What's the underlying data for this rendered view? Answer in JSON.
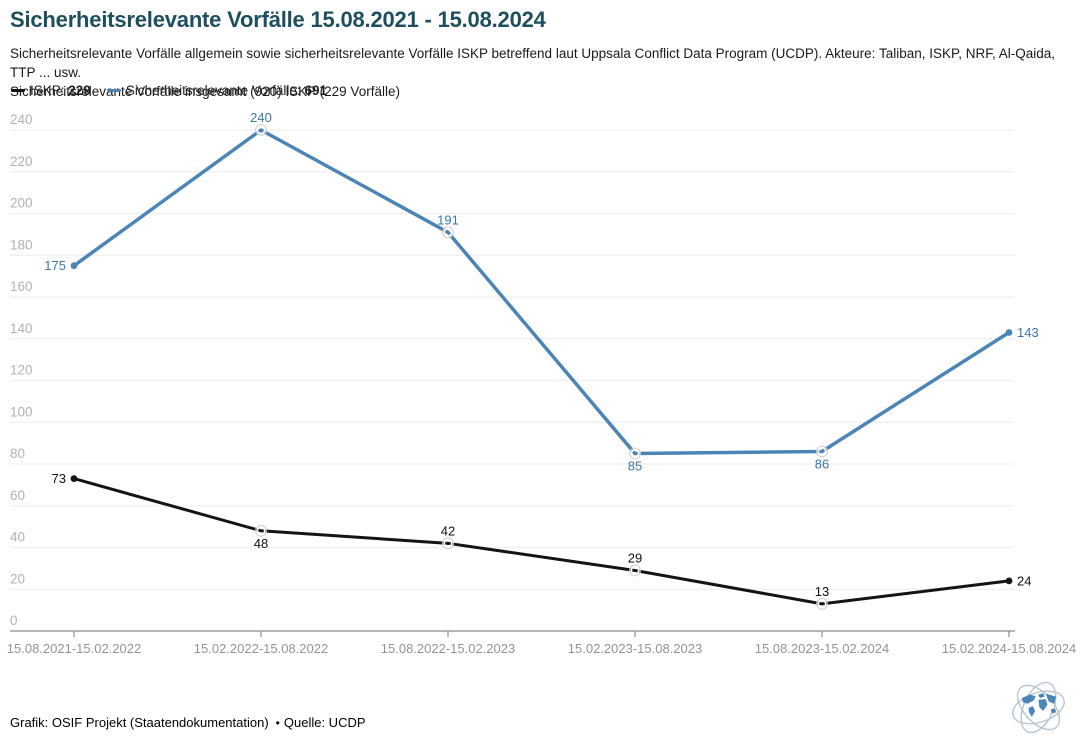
{
  "title": "Sicherheitsrelevante Vorfälle 15.08.2021 - 15.08.2024",
  "subtitle_line1": "Sicherheitsrelevante Vorfälle allgemein sowie sicherheitsrelevante Vorfälle ISKP betreffend laut Uppsala Conflict Data Program (UCDP). Akteure: Taliban, ISKP, NRF, Al-Qaida, TTP ... usw.",
  "subtitle_line2": "Sicherheitsrelevante Vorfälle insgesamt (920) ISKP (229 Vorfälle)",
  "legend": {
    "items": [
      {
        "label": "ISKP:",
        "value": "229",
        "color": "#141414"
      },
      {
        "label": "Sicherheitsrelevante Vorfälle:",
        "value": "691",
        "color": "#4c85b5"
      }
    ]
  },
  "colors": {
    "title": "#1e4f5f",
    "gridline": "#efefef",
    "axis": "#8c8c8c",
    "y_tick_label": "#b2b2b2",
    "x_tick_label": "#949494"
  },
  "footer": {
    "credit": "Grafik: OSIF Projekt (Staatendokumentation)",
    "separator": "•",
    "source": "Quelle: UCDP",
    "logo_icon": "globe-orbits-logo"
  },
  "chart_data": {
    "type": "line",
    "title": "Sicherheitsrelevante Vorfälle 15.08.2021 - 15.08.2024",
    "categories": [
      "15.08.2021-15.02.2022",
      "15.02.2022-15.08.2022",
      "15.08.2022-15.02.2023",
      "15.02.2023-15.08.2023",
      "15.08.2023-15.02.2024",
      "15.02.2024-15.08.2024"
    ],
    "series": [
      {
        "name": "ISKP",
        "total": 229,
        "values": [
          73,
          48,
          42,
          29,
          13,
          24
        ],
        "color": "#141414",
        "label_color": "#111111"
      },
      {
        "name": "Sicherheitsrelevante Vorfälle",
        "total": 691,
        "values": [
          175,
          240,
          191,
          85,
          86,
          143
        ],
        "color": "#4c85b5",
        "label_color": "#3a76ac"
      }
    ],
    "xlabel": "",
    "ylabel": "",
    "ylim": [
      0,
      240
    ],
    "ytick_step": 20,
    "grid": "horizontal",
    "legend_position": "top-left",
    "data_labels": true
  }
}
